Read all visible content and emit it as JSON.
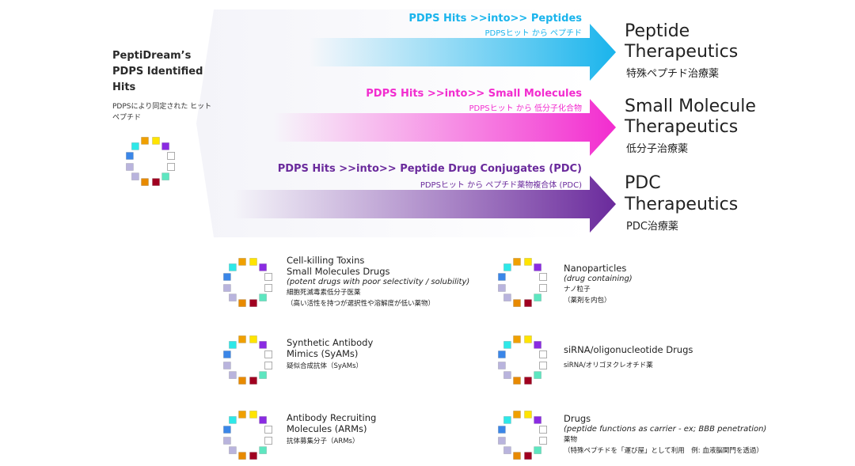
{
  "source": {
    "title": "PeptiDream’s PDPS Identified Hits",
    "subtitle": "PDPSにより同定された ヒットペプチド"
  },
  "routes": [
    {
      "header": "PDPS Hits >>into>> Peptides",
      "sub": "PDPSヒット から ペプチド",
      "color": "#1ab4ec",
      "output_title": [
        "Peptide",
        "Therapeutics"
      ],
      "output_jp": "特殊ペプチド治療薬"
    },
    {
      "header": "PDPS Hits >>into>> Small Molecules",
      "sub": "PDPSヒット から 低分子化合物",
      "color": "#f22ccf",
      "output_title": [
        "Small Molecule",
        "Therapeutics"
      ],
      "output_jp": "低分子治療薬"
    },
    {
      "header": "PDPS Hits >>into>> Peptide Drug Conjugates (PDC)",
      "sub": "PDPSヒット から ペプチド薬物複合体 (PDC)",
      "color": "#6a2a9c",
      "output_title": [
        "PDC",
        "Therapeutics"
      ],
      "output_jp": "PDC治療薬"
    }
  ],
  "categories": [
    {
      "lines": [
        "Cell-killing Toxins",
        "Small Molecules Drugs"
      ],
      "subline": "(potent drugs with poor selectivity / solubility)",
      "jp": [
        "細胞死滅毒素低分子医薬",
        "（高い活性を持つが選択性や溶解度が低い薬物）"
      ]
    },
    {
      "lines": [
        "Nanoparticles"
      ],
      "subline": "(drug containing)",
      "jp": [
        "ナノ粒子",
        "（薬剤を内包）"
      ]
    },
    {
      "lines": [
        "Synthetic Antibody",
        "Mimics (SyAMs)"
      ],
      "subline": "",
      "jp": [
        "疑似合成抗体（SyAMs）"
      ]
    },
    {
      "lines": [
        "siRNA/oligonucleotide Drugs"
      ],
      "subline": "",
      "jp": [
        "siRNA/オリゴヌクレオチド薬"
      ]
    },
    {
      "lines": [
        "Antibody Recruiting",
        "Molecules (ARMs)"
      ],
      "subline": "",
      "jp": [
        "抗体募集分子（ARMs）"
      ]
    },
    {
      "lines": [
        "Drugs"
      ],
      "subline": "(peptide functions as carrier - ex; BBB penetration)",
      "jp": [
        "薬物",
        "（特殊ペプチドを「運び屋」として利用　例: 血液脳関門を透過）"
      ]
    }
  ],
  "ring_colors": [
    "#ffe400",
    "#8a2be2",
    "#ffffff",
    "#ffffff",
    "#5ee6c0",
    "#a00020",
    "#e88a00",
    "#b9b4dd",
    "#b9b4dd",
    "#3a86e8",
    "#2ee8e8",
    "#f0a000"
  ]
}
